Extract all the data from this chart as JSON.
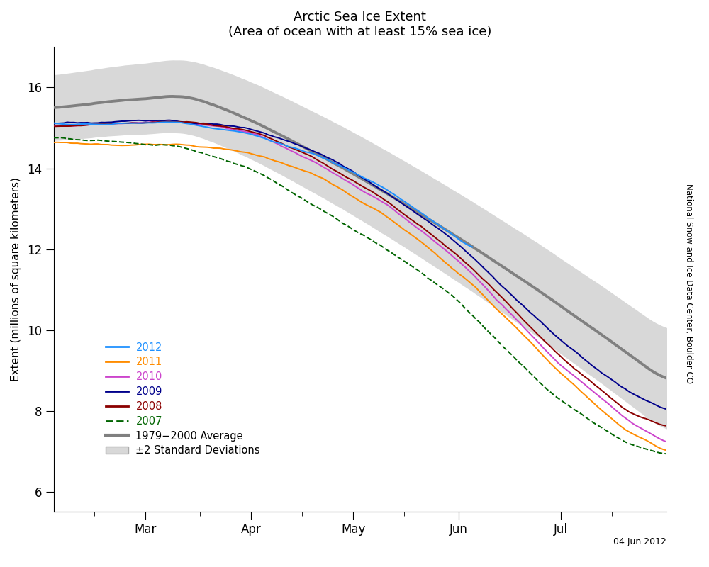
{
  "title": "Arctic Sea Ice Extent",
  "subtitle": "(Area of ocean with at least 15% sea ice)",
  "ylabel": "Extent (millions of square kilometers)",
  "xlabel": "",
  "ylim": [
    5.5,
    17.0
  ],
  "yticks": [
    6,
    8,
    10,
    12,
    14,
    16
  ],
  "month_ticks": [
    {
      "day": 59,
      "label": "Mar"
    },
    {
      "day": 90,
      "label": "Apr"
    },
    {
      "day": 120,
      "label": "May"
    },
    {
      "day": 151,
      "label": "Jun"
    },
    {
      "day": 181,
      "label": "Jul"
    }
  ],
  "minor_ticks": [
    44,
    75,
    105,
    135,
    166,
    196
  ],
  "colors": {
    "2012": "#1e90ff",
    "2011": "#ff8c00",
    "2010": "#cc44cc",
    "2009": "#00008b",
    "2008": "#8b0000",
    "2007": "#006400",
    "average": "#808080",
    "std_fill": "#d8d8d8"
  },
  "line_widths": {
    "years": 1.4,
    "average": 2.8
  },
  "footnote": "04 Jun 2012",
  "watermark": "National Snow and Ice Data Center, Boulder CO",
  "background_color": "#ffffff"
}
